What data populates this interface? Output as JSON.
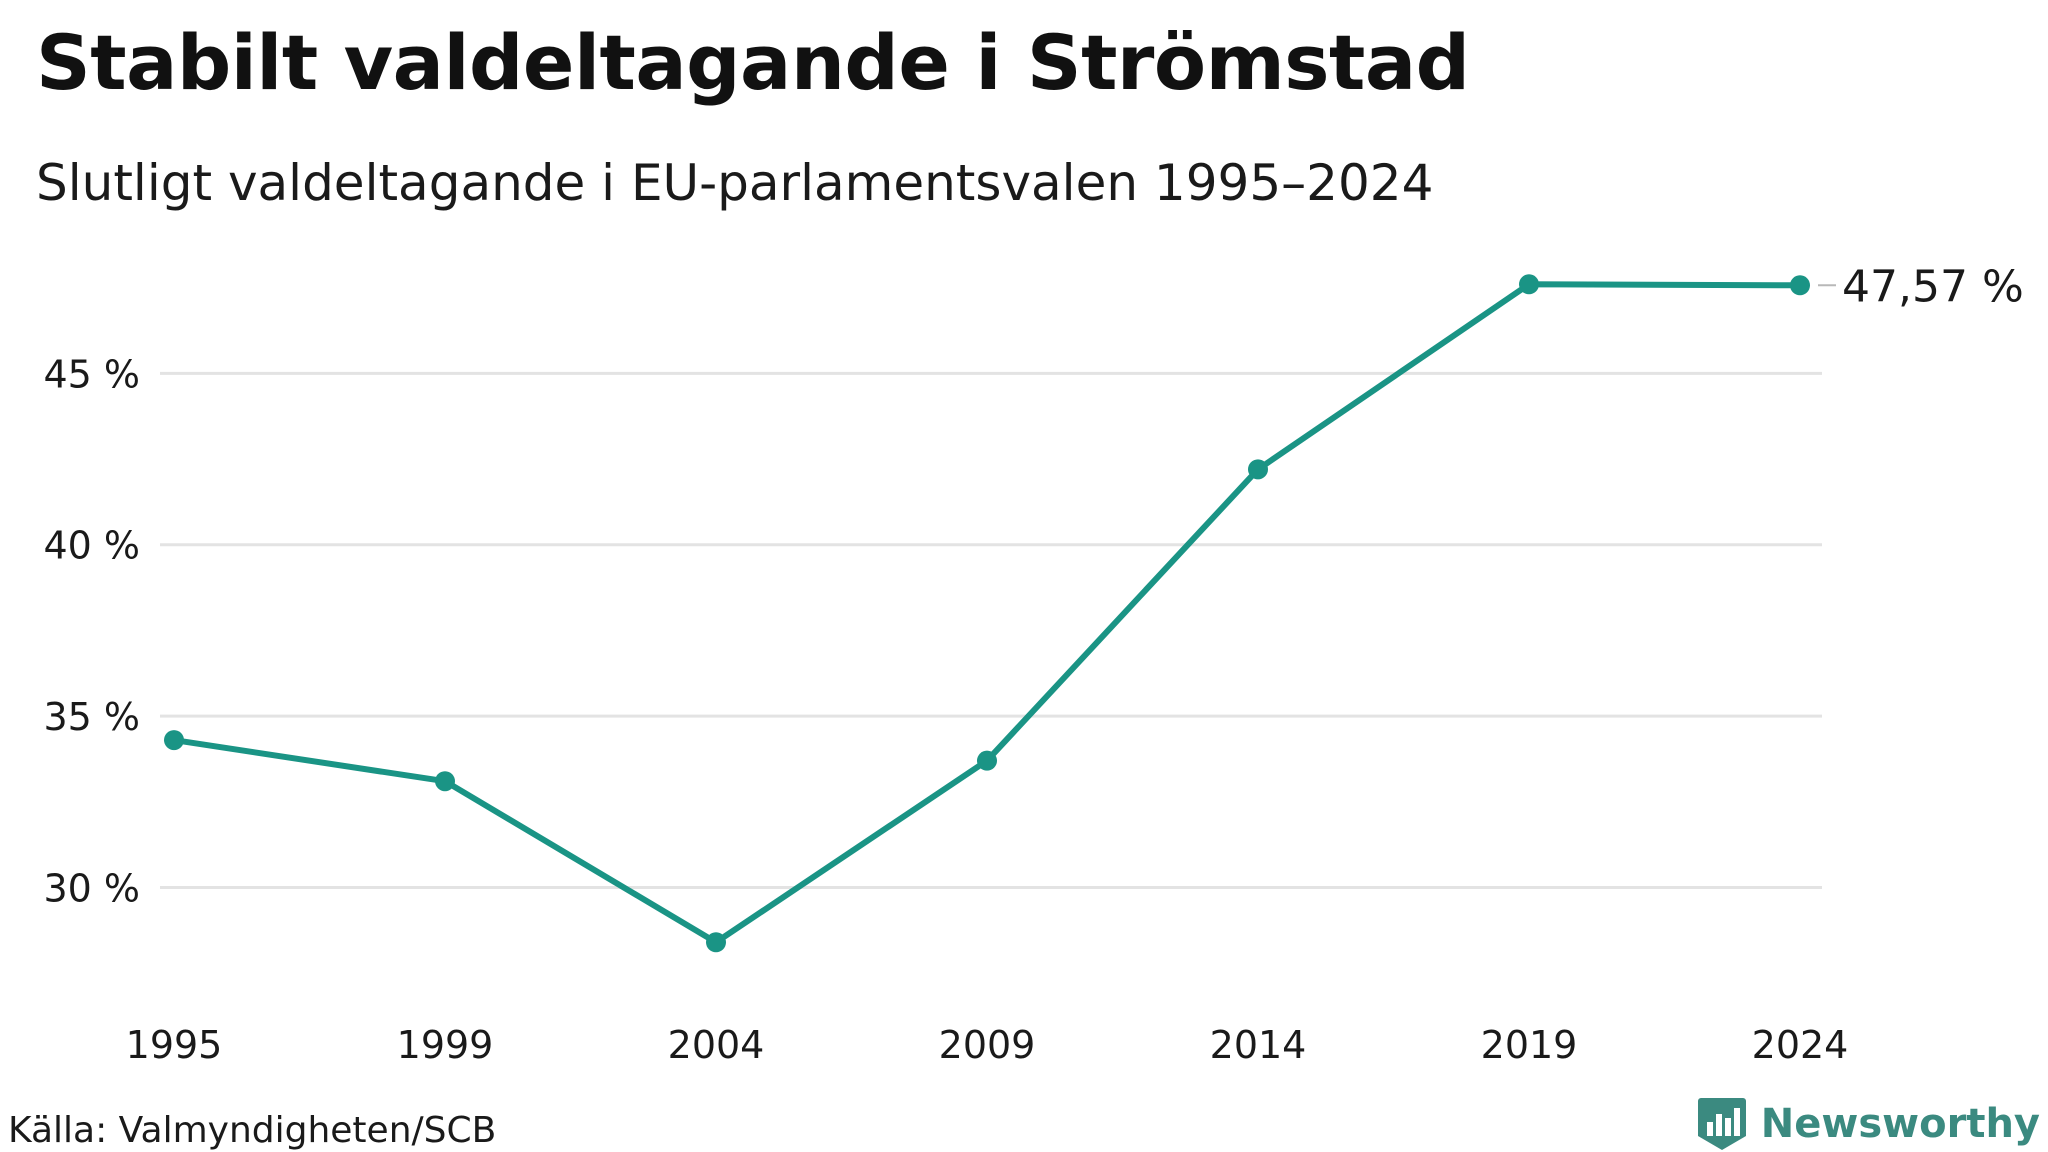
{
  "title": "Stabilt valdeltagande i Strömstad",
  "subtitle": "Slutligt valdeltagande i EU-parlamentsvalen 1995–2024",
  "source": "Källa: Valmyndigheten/SCB",
  "brand": {
    "name": "Newsworthy",
    "logo_icon": "bar-chart-flag-icon"
  },
  "chart_data": {
    "type": "line",
    "title": "Stabilt valdeltagande i Strömstad",
    "subtitle": "Slutligt valdeltagande i EU-parlamentsvalen 1995–2024",
    "xlabel": "",
    "ylabel": "",
    "x": [
      "1995",
      "1999",
      "2004",
      "2009",
      "2014",
      "2019",
      "2024"
    ],
    "values": [
      34.3,
      33.1,
      28.4,
      33.7,
      42.2,
      47.6,
      47.57
    ],
    "ylim": [
      27.3,
      48.6
    ],
    "yticks": [
      30,
      35,
      40,
      45
    ],
    "ytick_labels": [
      "30 %",
      "35 %",
      "40 %",
      "45 %"
    ],
    "end_label": "47,57 %",
    "grid": "horizontal",
    "legend": "none",
    "line_color": "#1a9485",
    "grid_color": "#e3e3e3"
  }
}
